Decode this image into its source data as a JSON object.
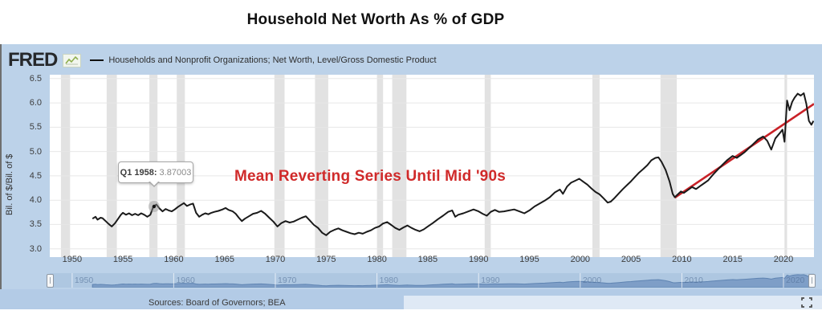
{
  "title": "Household Net Worth As % of GDP",
  "header": {
    "logo_text": "FRED",
    "legend_label": "Households and Nonprofit Organizations; Net Worth, Level/Gross Domestic Product"
  },
  "tooltip": {
    "label": "Q1 1958:",
    "value": "3.87003"
  },
  "annotation": {
    "text": "Mean Reverting Series Until Mid '90s",
    "color": "#d02a2a"
  },
  "sources_text": "Sources: Board of Governors; BEA",
  "colors": {
    "chart_background": "#bcd2e9",
    "plot_background": "#ffffff",
    "series": "#1a1a1a",
    "trend": "#c92127",
    "grid": "#e7e7e7",
    "recession": "#e2e2e2",
    "nav_fill": "#7e9ec7",
    "nav_stroke": "#5f84b2",
    "marker_halo": "rgba(150,150,150,0.45)"
  },
  "chart_data": {
    "type": "line",
    "title": "Household Net Worth As % of GDP",
    "xlabel": "",
    "ylabel": "Bil. of $/Bil. of $",
    "xlim": [
      1947.8,
      2023.0
    ],
    "ylim": [
      2.83,
      6.58
    ],
    "x_ticks": [
      1950,
      1955,
      1960,
      1965,
      1970,
      1975,
      1980,
      1985,
      1990,
      1995,
      2000,
      2005,
      2010,
      2015,
      2020
    ],
    "y_ticks": [
      3.0,
      3.5,
      4.0,
      4.5,
      5.0,
      5.5,
      6.0,
      6.5
    ],
    "grid": "horizontal",
    "legend_position": "top-left",
    "marker": {
      "x": 1958.06,
      "y": 3.87003,
      "tooltip": "Q1 1958: 3.87003"
    },
    "trend_line": {
      "name": "linear trend since 2009",
      "color": "#c92127",
      "from": [
        2009.3,
        4.05
      ],
      "to": [
        2023.0,
        5.98
      ]
    },
    "recessions": [
      [
        1948.9,
        1949.8
      ],
      [
        1953.4,
        1954.4
      ],
      [
        1957.6,
        1958.4
      ],
      [
        1960.3,
        1961.1
      ],
      [
        1969.9,
        1970.9
      ],
      [
        1973.9,
        1975.2
      ],
      [
        1980.0,
        1980.6
      ],
      [
        1981.5,
        1982.9
      ],
      [
        1990.6,
        1991.2
      ],
      [
        2001.2,
        2001.9
      ],
      [
        2007.9,
        2009.5
      ],
      [
        2020.1,
        2020.35
      ]
    ],
    "series": [
      {
        "name": "Households and Nonprofit Organizations; Net Worth, Level/Gross Domestic Product",
        "color": "#1a1a1a",
        "points": [
          [
            1952.0,
            3.62
          ],
          [
            1952.3,
            3.66
          ],
          [
            1952.5,
            3.6
          ],
          [
            1952.8,
            3.64
          ],
          [
            1953.0,
            3.63
          ],
          [
            1953.3,
            3.57
          ],
          [
            1953.6,
            3.51
          ],
          [
            1953.9,
            3.46
          ],
          [
            1954.2,
            3.52
          ],
          [
            1954.5,
            3.61
          ],
          [
            1954.8,
            3.7
          ],
          [
            1955.0,
            3.74
          ],
          [
            1955.3,
            3.7
          ],
          [
            1955.6,
            3.73
          ],
          [
            1955.9,
            3.69
          ],
          [
            1956.2,
            3.72
          ],
          [
            1956.5,
            3.69
          ],
          [
            1956.8,
            3.73
          ],
          [
            1957.1,
            3.7
          ],
          [
            1957.4,
            3.66
          ],
          [
            1957.7,
            3.7
          ],
          [
            1958.0,
            3.87
          ],
          [
            1958.3,
            3.91
          ],
          [
            1958.6,
            3.83
          ],
          [
            1958.9,
            3.77
          ],
          [
            1959.2,
            3.82
          ],
          [
            1959.5,
            3.79
          ],
          [
            1959.8,
            3.77
          ],
          [
            1960.1,
            3.81
          ],
          [
            1960.4,
            3.86
          ],
          [
            1960.7,
            3.9
          ],
          [
            1961.0,
            3.94
          ],
          [
            1961.3,
            3.88
          ],
          [
            1961.6,
            3.91
          ],
          [
            1961.9,
            3.93
          ],
          [
            1962.2,
            3.74
          ],
          [
            1962.5,
            3.66
          ],
          [
            1962.8,
            3.7
          ],
          [
            1963.1,
            3.73
          ],
          [
            1963.4,
            3.71
          ],
          [
            1963.7,
            3.74
          ],
          [
            1964.0,
            3.76
          ],
          [
            1964.4,
            3.78
          ],
          [
            1964.8,
            3.81
          ],
          [
            1965.1,
            3.84
          ],
          [
            1965.4,
            3.8
          ],
          [
            1965.8,
            3.77
          ],
          [
            1966.1,
            3.72
          ],
          [
            1966.4,
            3.64
          ],
          [
            1966.7,
            3.57
          ],
          [
            1967.0,
            3.62
          ],
          [
            1967.4,
            3.67
          ],
          [
            1967.8,
            3.72
          ],
          [
            1968.2,
            3.74
          ],
          [
            1968.6,
            3.78
          ],
          [
            1969.0,
            3.72
          ],
          [
            1969.4,
            3.64
          ],
          [
            1969.8,
            3.56
          ],
          [
            1970.2,
            3.46
          ],
          [
            1970.6,
            3.53
          ],
          [
            1971.0,
            3.57
          ],
          [
            1971.4,
            3.54
          ],
          [
            1971.8,
            3.56
          ],
          [
            1972.2,
            3.6
          ],
          [
            1972.6,
            3.64
          ],
          [
            1973.0,
            3.67
          ],
          [
            1973.4,
            3.58
          ],
          [
            1973.8,
            3.49
          ],
          [
            1974.2,
            3.43
          ],
          [
            1974.6,
            3.33
          ],
          [
            1975.0,
            3.28
          ],
          [
            1975.4,
            3.35
          ],
          [
            1975.8,
            3.39
          ],
          [
            1976.2,
            3.42
          ],
          [
            1976.6,
            3.38
          ],
          [
            1977.0,
            3.35
          ],
          [
            1977.4,
            3.32
          ],
          [
            1977.8,
            3.3
          ],
          [
            1978.2,
            3.33
          ],
          [
            1978.6,
            3.31
          ],
          [
            1979.0,
            3.35
          ],
          [
            1979.4,
            3.38
          ],
          [
            1979.8,
            3.43
          ],
          [
            1980.2,
            3.46
          ],
          [
            1980.6,
            3.52
          ],
          [
            1981.0,
            3.55
          ],
          [
            1981.4,
            3.49
          ],
          [
            1981.8,
            3.43
          ],
          [
            1982.2,
            3.39
          ],
          [
            1982.6,
            3.44
          ],
          [
            1983.0,
            3.48
          ],
          [
            1983.4,
            3.43
          ],
          [
            1983.8,
            3.39
          ],
          [
            1984.2,
            3.36
          ],
          [
            1984.6,
            3.4
          ],
          [
            1985.0,
            3.46
          ],
          [
            1985.5,
            3.53
          ],
          [
            1986.0,
            3.61
          ],
          [
            1986.5,
            3.68
          ],
          [
            1987.0,
            3.76
          ],
          [
            1987.4,
            3.79
          ],
          [
            1987.7,
            3.66
          ],
          [
            1988.0,
            3.7
          ],
          [
            1988.5,
            3.73
          ],
          [
            1989.0,
            3.77
          ],
          [
            1989.5,
            3.81
          ],
          [
            1990.0,
            3.77
          ],
          [
            1990.4,
            3.72
          ],
          [
            1990.8,
            3.68
          ],
          [
            1991.2,
            3.76
          ],
          [
            1991.6,
            3.8
          ],
          [
            1992.0,
            3.76
          ],
          [
            1992.5,
            3.77
          ],
          [
            1993.0,
            3.79
          ],
          [
            1993.5,
            3.81
          ],
          [
            1994.0,
            3.77
          ],
          [
            1994.5,
            3.73
          ],
          [
            1995.0,
            3.79
          ],
          [
            1995.5,
            3.87
          ],
          [
            1996.0,
            3.93
          ],
          [
            1996.5,
            3.99
          ],
          [
            1997.0,
            4.06
          ],
          [
            1997.5,
            4.16
          ],
          [
            1998.0,
            4.22
          ],
          [
            1998.3,
            4.13
          ],
          [
            1998.7,
            4.28
          ],
          [
            1999.1,
            4.36
          ],
          [
            1999.5,
            4.4
          ],
          [
            1999.9,
            4.44
          ],
          [
            2000.3,
            4.38
          ],
          [
            2000.7,
            4.32
          ],
          [
            2001.1,
            4.24
          ],
          [
            2001.5,
            4.17
          ],
          [
            2001.9,
            4.12
          ],
          [
            2002.3,
            4.04
          ],
          [
            2002.7,
            3.95
          ],
          [
            2003.0,
            3.97
          ],
          [
            2003.4,
            4.05
          ],
          [
            2003.8,
            4.14
          ],
          [
            2004.2,
            4.23
          ],
          [
            2004.6,
            4.31
          ],
          [
            2005.0,
            4.39
          ],
          [
            2005.4,
            4.48
          ],
          [
            2005.8,
            4.57
          ],
          [
            2006.2,
            4.64
          ],
          [
            2006.6,
            4.72
          ],
          [
            2007.0,
            4.82
          ],
          [
            2007.4,
            4.87
          ],
          [
            2007.7,
            4.88
          ],
          [
            2008.0,
            4.79
          ],
          [
            2008.4,
            4.62
          ],
          [
            2008.8,
            4.38
          ],
          [
            2009.1,
            4.13
          ],
          [
            2009.3,
            4.06
          ],
          [
            2009.6,
            4.12
          ],
          [
            2009.9,
            4.18
          ],
          [
            2010.2,
            4.15
          ],
          [
            2010.6,
            4.21
          ],
          [
            2011.0,
            4.27
          ],
          [
            2011.4,
            4.23
          ],
          [
            2011.8,
            4.29
          ],
          [
            2012.2,
            4.35
          ],
          [
            2012.6,
            4.41
          ],
          [
            2013.0,
            4.51
          ],
          [
            2013.5,
            4.62
          ],
          [
            2014.0,
            4.73
          ],
          [
            2014.5,
            4.83
          ],
          [
            2015.0,
            4.91
          ],
          [
            2015.4,
            4.87
          ],
          [
            2015.8,
            4.93
          ],
          [
            2016.2,
            4.99
          ],
          [
            2016.6,
            5.07
          ],
          [
            2017.0,
            5.15
          ],
          [
            2017.5,
            5.25
          ],
          [
            2018.0,
            5.31
          ],
          [
            2018.4,
            5.22
          ],
          [
            2018.8,
            5.04
          ],
          [
            2019.2,
            5.27
          ],
          [
            2019.6,
            5.37
          ],
          [
            2019.9,
            5.45
          ],
          [
            2020.1,
            5.2
          ],
          [
            2020.35,
            6.05
          ],
          [
            2020.6,
            5.85
          ],
          [
            2020.85,
            6.02
          ],
          [
            2021.1,
            6.11
          ],
          [
            2021.4,
            6.19
          ],
          [
            2021.7,
            6.15
          ],
          [
            2022.0,
            6.2
          ],
          [
            2022.25,
            5.98
          ],
          [
            2022.5,
            5.63
          ],
          [
            2022.75,
            5.55
          ],
          [
            2022.95,
            5.63
          ]
        ]
      }
    ],
    "annotations": [
      {
        "text": "Mean Reverting Series Until Mid '90s",
        "color": "#d02a2a"
      },
      {
        "text": "Q1 1958: 3.87003",
        "kind": "tooltip"
      }
    ]
  },
  "navigator": {
    "labels": [
      1950,
      1960,
      1970,
      1980,
      1990,
      2000,
      2010,
      2020
    ]
  },
  "icons": {
    "fullscreen": "fullscreen-expand-icon",
    "fred_sparkline": "fred-sparkline-icon"
  }
}
